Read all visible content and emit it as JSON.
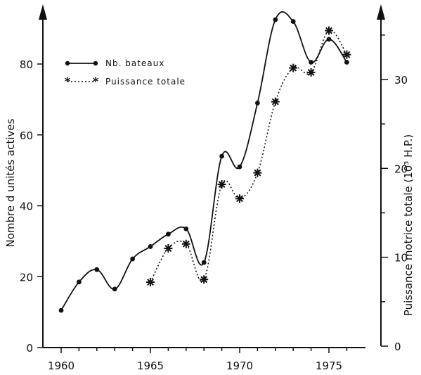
{
  "chart_data": {
    "type": "line",
    "x": [
      1960,
      1961,
      1962,
      1963,
      1964,
      1965,
      1966,
      1967,
      1968,
      1969,
      1970,
      1971,
      1972,
      1973,
      1974,
      1975,
      1976
    ],
    "xlim": [
      1960,
      1977
    ],
    "x_ticks": [
      "1960",
      "1965",
      "1970",
      "1975"
    ],
    "ylabel": "Nombre  d unités actives",
    "ylim": [
      0,
      95
    ],
    "y_ticks": [
      "0",
      "20",
      "40",
      "60",
      "80"
    ],
    "y2label": "Puissance motrice totale (10³ H.P.)",
    "y2lim": [
      0,
      38
    ],
    "y2_ticks": [
      "0",
      "10",
      "20",
      "30"
    ],
    "series": [
      {
        "name": "Nb. bateaux",
        "axis": "left",
        "style": "solid",
        "marker": "dot",
        "x": [
          1960,
          1961,
          1962,
          1963,
          1964,
          1965,
          1966,
          1967,
          1968,
          1969,
          1970,
          1971,
          1972,
          1973,
          1974,
          1975,
          1976
        ],
        "values": [
          10.5,
          18.5,
          22,
          16.5,
          25,
          28.5,
          32,
          33.5,
          24,
          54,
          51,
          69,
          92.5,
          92,
          80.5,
          87,
          80.5
        ]
      },
      {
        "name": "Puissance totale",
        "axis": "right",
        "style": "dotted",
        "marker": "star",
        "x": [
          1965,
          1966,
          1967,
          1968,
          1969,
          1970,
          1971,
          1972,
          1973,
          1974,
          1975,
          1976
        ],
        "values": [
          7.2,
          11,
          11.5,
          7.5,
          18.2,
          16.6,
          19.5,
          27.5,
          31.3,
          30.8,
          35.5,
          32.8
        ]
      }
    ],
    "legend": "top-left",
    "grid": false
  }
}
